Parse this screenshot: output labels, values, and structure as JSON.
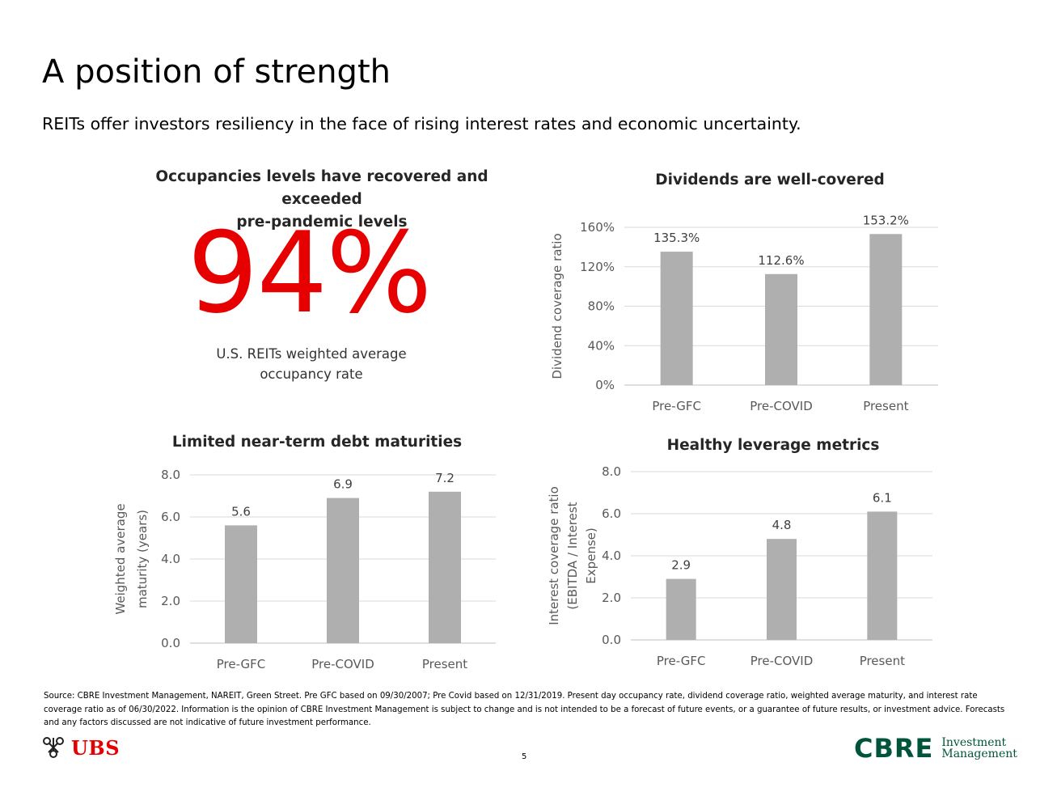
{
  "page": {
    "title": "A position of strength",
    "subtitle": "REITs offer investors resiliency in the face of rising interest rates and economic uncertainty.",
    "page_number": "5",
    "source_note": "Source: CBRE Investment Management, NAREIT, Green Street.  Pre GFC based on 09/30/2007; Pre Covid based on 12/31/2019.  Present day occupancy rate, dividend coverage ratio, weighted average maturity, and interest rate coverage ratio as of 06/30/2022. Information is the opinion of CBRE Investment Management is subject to change and is not intended to be a forecast of future events, or a guarantee of future results, or investment advice. Forecasts and any factors discussed are not indicative of future investment performance."
  },
  "occupancy": {
    "title_line1": "Occupancies levels have recovered and exceeded",
    "title_line2": "pre-pandemic levels",
    "value": "94%",
    "caption_line1": "U.S. REITs weighted average",
    "caption_line2": "occupancy rate"
  },
  "logos": {
    "ubs": "UBS",
    "cbre": "CBRE",
    "cbre_line1": "Investment",
    "cbre_line2": "Management"
  },
  "colors": {
    "bar": "#afafaf",
    "grid": "#d9d9d9",
    "accent_red": "#e60000",
    "cbre_green": "#00543c"
  },
  "chart_data": [
    {
      "id": "dividends",
      "type": "bar",
      "title": "Dividends are well-covered",
      "categories": [
        "Pre-GFC",
        "Pre-COVID",
        "Present"
      ],
      "values": [
        135.3,
        112.6,
        153.2
      ],
      "value_labels": [
        "135.3%",
        "112.6%",
        "153.2%"
      ],
      "ylabel_lines": [
        "Dividend coverage ratio"
      ],
      "xlabel": "",
      "ylim": [
        0,
        160
      ],
      "ticks": [
        0,
        40,
        80,
        120,
        160
      ],
      "tick_labels": [
        "0%",
        "40%",
        "80%",
        "120%",
        "160%"
      ],
      "grid": true
    },
    {
      "id": "maturities",
      "type": "bar",
      "title": "Limited near-term debt maturities",
      "categories": [
        "Pre-GFC",
        "Pre-COVID",
        "Present"
      ],
      "values": [
        5.6,
        6.9,
        7.2
      ],
      "value_labels": [
        "5.6",
        "6.9",
        "7.2"
      ],
      "ylabel_lines": [
        "Weighted average",
        "maturity (years)"
      ],
      "xlabel": "",
      "ylim": [
        0,
        8
      ],
      "ticks": [
        0,
        2,
        4,
        6,
        8
      ],
      "tick_labels": [
        "0.0",
        "2.0",
        "4.0",
        "6.0",
        "8.0"
      ],
      "grid": true
    },
    {
      "id": "leverage",
      "type": "bar",
      "title": "Healthy leverage metrics",
      "categories": [
        "Pre-GFC",
        "Pre-COVID",
        "Present"
      ],
      "values": [
        2.9,
        4.8,
        6.1
      ],
      "value_labels": [
        "2.9",
        "4.8",
        "6.1"
      ],
      "ylabel_lines": [
        "Interest coverage ratio",
        "(EBITDA / Interest",
        "Expense)"
      ],
      "xlabel": "",
      "ylim": [
        0,
        8
      ],
      "ticks": [
        0,
        2,
        4,
        6,
        8
      ],
      "tick_labels": [
        "0.0",
        "2.0",
        "4.0",
        "6.0",
        "8.0"
      ],
      "grid": true
    }
  ]
}
